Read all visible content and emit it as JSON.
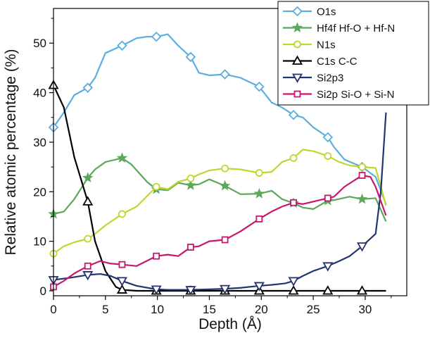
{
  "chart_data": {
    "type": "line",
    "xlabel": "Depth (Å)",
    "ylabel": "Relative atomic percentage (%)",
    "xlim": [
      0,
      34
    ],
    "ylim": [
      -1,
      57
    ],
    "x_ticks": [
      "0",
      "5",
      "10",
      "15",
      "20",
      "25",
      "30"
    ],
    "y_ticks": [
      "0",
      "10",
      "20",
      "30",
      "40",
      "50"
    ],
    "legend_position": "top-right",
    "grid": false,
    "series": [
      {
        "name": "O1s",
        "color": "#5aaee0",
        "marker": "diamond",
        "points": [
          [
            0,
            33
          ],
          [
            1,
            36
          ],
          [
            2,
            39.5
          ],
          [
            3.3,
            41
          ],
          [
            4,
            43
          ],
          [
            5,
            48
          ],
          [
            6.6,
            49.5
          ],
          [
            8,
            51
          ],
          [
            9,
            51.3
          ],
          [
            10,
            51.3
          ],
          [
            11,
            51.8
          ],
          [
            12,
            49.5
          ],
          [
            13.2,
            47.2
          ],
          [
            14,
            44
          ],
          [
            15,
            43.5
          ],
          [
            16.5,
            43.7
          ],
          [
            18,
            43
          ],
          [
            19.8,
            41.2
          ],
          [
            21,
            38
          ],
          [
            22,
            37
          ],
          [
            23.1,
            35.5
          ],
          [
            24,
            35
          ],
          [
            25,
            33
          ],
          [
            26.4,
            31
          ],
          [
            27,
            29
          ],
          [
            28,
            26.5
          ],
          [
            29.7,
            25
          ],
          [
            31,
            23
          ],
          [
            32,
            17.5
          ]
        ],
        "marker_x": [
          0,
          3.3,
          6.6,
          9.9,
          13.2,
          16.5,
          19.8,
          23.1,
          26.4,
          29.7
        ]
      },
      {
        "name": "Hf4f Hf-O + Hf-N",
        "color": "#5aa85a",
        "marker": "star",
        "points": [
          [
            0,
            15.5
          ],
          [
            1,
            16
          ],
          [
            2,
            18.5
          ],
          [
            3.3,
            22.8
          ],
          [
            4,
            24.5
          ],
          [
            5,
            26
          ],
          [
            6.6,
            26.8
          ],
          [
            7.5,
            25.5
          ],
          [
            9,
            22
          ],
          [
            9.9,
            20.5
          ],
          [
            11,
            20.3
          ],
          [
            12,
            21.8
          ],
          [
            13.2,
            21.3
          ],
          [
            14,
            21.5
          ],
          [
            15,
            22.5
          ],
          [
            16.5,
            21.2
          ],
          [
            18,
            19.5
          ],
          [
            19.8,
            19.6
          ],
          [
            21,
            20.2
          ],
          [
            22,
            18.5
          ],
          [
            23.1,
            17.7
          ],
          [
            24,
            16.8
          ],
          [
            25,
            16.5
          ],
          [
            26.4,
            18.2
          ],
          [
            27,
            18.3
          ],
          [
            28.5,
            19
          ],
          [
            29.7,
            18.5
          ],
          [
            31,
            18.7
          ],
          [
            32,
            14
          ]
        ],
        "marker_x": [
          0,
          3.3,
          6.6,
          9.9,
          13.2,
          16.5,
          19.8,
          23.1,
          26.4,
          29.7
        ]
      },
      {
        "name": "N1s",
        "color": "#c2d52d",
        "marker": "circle",
        "points": [
          [
            0,
            7.5
          ],
          [
            1,
            9
          ],
          [
            2,
            9.8
          ],
          [
            3.3,
            10.5
          ],
          [
            4,
            11.5
          ],
          [
            5,
            13.2
          ],
          [
            6.6,
            15.5
          ],
          [
            8,
            17
          ],
          [
            9.9,
            21
          ],
          [
            11,
            20.5
          ],
          [
            12,
            22
          ],
          [
            13.2,
            22.7
          ],
          [
            14,
            23.5
          ],
          [
            15,
            24.3
          ],
          [
            16.5,
            24.7
          ],
          [
            18,
            24.5
          ],
          [
            19.8,
            23.8
          ],
          [
            21,
            24
          ],
          [
            22,
            26
          ],
          [
            23.1,
            26.8
          ],
          [
            24,
            28.5
          ],
          [
            25,
            28.2
          ],
          [
            26.4,
            27.2
          ],
          [
            27.5,
            26
          ],
          [
            28.5,
            25.3
          ],
          [
            29.7,
            25
          ],
          [
            31,
            24.8
          ],
          [
            32,
            17.2
          ]
        ],
        "marker_x": [
          0,
          3.3,
          6.6,
          9.9,
          13.2,
          16.5,
          19.8,
          23.1,
          26.4,
          29.7
        ]
      },
      {
        "name": "C1s C-C",
        "color": "#000000",
        "marker": "triangle-up",
        "points": [
          [
            0,
            41.5
          ],
          [
            1,
            37
          ],
          [
            2,
            27
          ],
          [
            3.3,
            18
          ],
          [
            4,
            10
          ],
          [
            5,
            4
          ],
          [
            6,
            0.8
          ],
          [
            6.6,
            0.2
          ],
          [
            8,
            0
          ],
          [
            9.9,
            0
          ],
          [
            13.2,
            0
          ],
          [
            16.5,
            0
          ],
          [
            19.8,
            0
          ],
          [
            23.1,
            0
          ],
          [
            26.4,
            0
          ],
          [
            29.7,
            0
          ],
          [
            32,
            0
          ]
        ],
        "marker_x": [
          0,
          3.3,
          6.6,
          9.9,
          13.2,
          16.5,
          19.8,
          23.1,
          26.4,
          29.7
        ]
      },
      {
        "name": "Si2p3",
        "color": "#23356e",
        "marker": "triangle-down",
        "points": [
          [
            0,
            2.2
          ],
          [
            1.5,
            2.6
          ],
          [
            3.3,
            3.2
          ],
          [
            4.5,
            3.4
          ],
          [
            5.5,
            3
          ],
          [
            6.6,
            2
          ],
          [
            8,
            1
          ],
          [
            9.9,
            0.3
          ],
          [
            11,
            0.2
          ],
          [
            13.2,
            0.2
          ],
          [
            15,
            0.3
          ],
          [
            16.5,
            0.4
          ],
          [
            18,
            0.6
          ],
          [
            19.8,
            1
          ],
          [
            21,
            1.2
          ],
          [
            22.3,
            1.5
          ],
          [
            23.1,
            2
          ],
          [
            24,
            3
          ],
          [
            25,
            4
          ],
          [
            26.4,
            5
          ],
          [
            27.5,
            6
          ],
          [
            28.5,
            7
          ],
          [
            29.7,
            9
          ],
          [
            31,
            11.5
          ],
          [
            31.5,
            20
          ],
          [
            32,
            36
          ]
        ],
        "marker_x": [
          0,
          3.3,
          6.6,
          9.9,
          13.2,
          16.5,
          19.8,
          23.1,
          26.4,
          29.7
        ]
      },
      {
        "name": "Si2p Si-O + Si-N",
        "color": "#c8176e",
        "marker": "square",
        "points": [
          [
            0,
            0.8
          ],
          [
            1,
            2
          ],
          [
            2,
            3.5
          ],
          [
            3.3,
            5
          ],
          [
            4.5,
            6
          ],
          [
            5.5,
            5.5
          ],
          [
            6.6,
            5.3
          ],
          [
            8,
            5
          ],
          [
            9.9,
            7
          ],
          [
            11,
            7.3
          ],
          [
            12,
            7
          ],
          [
            13.2,
            8.8
          ],
          [
            14,
            9
          ],
          [
            15,
            10
          ],
          [
            16.5,
            10.3
          ],
          [
            18,
            12
          ],
          [
            19.8,
            14.5
          ],
          [
            21,
            16
          ],
          [
            22,
            17
          ],
          [
            23.1,
            17.8
          ],
          [
            24,
            17.5
          ],
          [
            25,
            18
          ],
          [
            26.4,
            18.7
          ],
          [
            27,
            19
          ],
          [
            28,
            21
          ],
          [
            29.7,
            23.3
          ],
          [
            30.5,
            23
          ],
          [
            31,
            21
          ],
          [
            32,
            15.2
          ]
        ],
        "marker_x": [
          0,
          3.3,
          6.6,
          9.9,
          13.2,
          16.5,
          19.8,
          23.1,
          26.4,
          29.7
        ]
      }
    ]
  }
}
